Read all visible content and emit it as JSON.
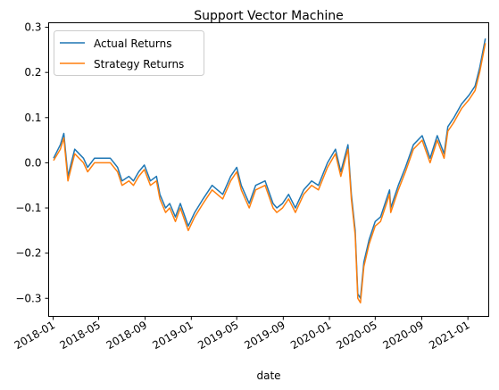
{
  "chart_data": {
    "type": "line",
    "title": "Support Vector Machine",
    "xlabel": "date",
    "ylabel": "",
    "x_axis_type": "date",
    "xlim": [
      "2017-12-20",
      "2021-02-25"
    ],
    "ylim": [
      -0.34,
      0.31
    ],
    "x_tick_labels": [
      "2018-01",
      "2018-05",
      "2018-09",
      "2019-01",
      "2019-05",
      "2019-09",
      "2020-01",
      "2020-05",
      "2020-09",
      "2021-01"
    ],
    "y_tick_labels": [
      "0.3",
      "0.2",
      "0.1",
      "0.0",
      "−0.1",
      "−0.2",
      "−0.3"
    ],
    "y_tick_values": [
      0.3,
      0.2,
      0.1,
      0.0,
      -0.1,
      -0.2,
      -0.3
    ],
    "grid": false,
    "legend_position": "top-left",
    "series": [
      {
        "name": "Actual Returns",
        "color": "#1f77b4",
        "points": [
          [
            "2018-01-02",
            0.01
          ],
          [
            "2018-01-20",
            0.04
          ],
          [
            "2018-01-29",
            0.065
          ],
          [
            "2018-02-09",
            -0.03
          ],
          [
            "2018-02-27",
            0.03
          ],
          [
            "2018-03-22",
            0.01
          ],
          [
            "2018-04-02",
            -0.01
          ],
          [
            "2018-04-20",
            0.01
          ],
          [
            "2018-05-15",
            0.01
          ],
          [
            "2018-06-01",
            0.01
          ],
          [
            "2018-06-20",
            -0.01
          ],
          [
            "2018-07-02",
            -0.04
          ],
          [
            "2018-07-20",
            -0.03
          ],
          [
            "2018-08-01",
            -0.04
          ],
          [
            "2018-08-15",
            -0.02
          ],
          [
            "2018-08-30",
            -0.005
          ],
          [
            "2018-09-15",
            -0.04
          ],
          [
            "2018-10-01",
            -0.03
          ],
          [
            "2018-10-10",
            -0.07
          ],
          [
            "2018-10-25",
            -0.1
          ],
          [
            "2018-11-05",
            -0.09
          ],
          [
            "2018-11-20",
            -0.12
          ],
          [
            "2018-12-03",
            -0.09
          ],
          [
            "2018-12-24",
            -0.14
          ],
          [
            "2019-01-10",
            -0.11
          ],
          [
            "2019-02-01",
            -0.08
          ],
          [
            "2019-02-25",
            -0.05
          ],
          [
            "2019-03-25",
            -0.07
          ],
          [
            "2019-04-15",
            -0.03
          ],
          [
            "2019-05-01",
            -0.01
          ],
          [
            "2019-05-13",
            -0.05
          ],
          [
            "2019-06-03",
            -0.09
          ],
          [
            "2019-06-20",
            -0.05
          ],
          [
            "2019-07-15",
            -0.04
          ],
          [
            "2019-08-05",
            -0.09
          ],
          [
            "2019-08-15",
            -0.1
          ],
          [
            "2019-08-30",
            -0.09
          ],
          [
            "2019-09-15",
            -0.07
          ],
          [
            "2019-10-03",
            -0.1
          ],
          [
            "2019-10-25",
            -0.06
          ],
          [
            "2019-11-15",
            -0.04
          ],
          [
            "2019-12-03",
            -0.05
          ],
          [
            "2019-12-27",
            0.0
          ],
          [
            "2020-01-17",
            0.03
          ],
          [
            "2020-01-31",
            -0.02
          ],
          [
            "2020-02-19",
            0.04
          ],
          [
            "2020-02-28",
            -0.07
          ],
          [
            "2020-03-09",
            -0.15
          ],
          [
            "2020-03-16",
            -0.29
          ],
          [
            "2020-03-23",
            -0.3
          ],
          [
            "2020-04-01",
            -0.22
          ],
          [
            "2020-04-15",
            -0.17
          ],
          [
            "2020-05-01",
            -0.13
          ],
          [
            "2020-05-15",
            -0.12
          ],
          [
            "2020-06-08",
            -0.06
          ],
          [
            "2020-06-11",
            -0.1
          ],
          [
            "2020-07-01",
            -0.05
          ],
          [
            "2020-07-20",
            -0.01
          ],
          [
            "2020-08-10",
            0.04
          ],
          [
            "2020-09-02",
            0.06
          ],
          [
            "2020-09-23",
            0.01
          ],
          [
            "2020-10-12",
            0.06
          ],
          [
            "2020-10-30",
            0.02
          ],
          [
            "2020-11-09",
            0.08
          ],
          [
            "2020-11-25",
            0.1
          ],
          [
            "2020-12-15",
            0.13
          ],
          [
            "2021-01-04",
            0.15
          ],
          [
            "2021-01-20",
            0.17
          ],
          [
            "2021-02-01",
            0.21
          ],
          [
            "2021-02-08",
            0.24
          ],
          [
            "2021-02-16",
            0.275
          ]
        ]
      },
      {
        "name": "Strategy Returns",
        "color": "#ff7f0e",
        "points": [
          [
            "2018-01-02",
            0.005
          ],
          [
            "2018-01-20",
            0.03
          ],
          [
            "2018-01-29",
            0.055
          ],
          [
            "2018-02-09",
            -0.04
          ],
          [
            "2018-02-27",
            0.02
          ],
          [
            "2018-03-22",
            0.0
          ],
          [
            "2018-04-02",
            -0.02
          ],
          [
            "2018-04-20",
            0.0
          ],
          [
            "2018-05-15",
            0.0
          ],
          [
            "2018-06-01",
            0.0
          ],
          [
            "2018-06-20",
            -0.02
          ],
          [
            "2018-07-02",
            -0.05
          ],
          [
            "2018-07-20",
            -0.04
          ],
          [
            "2018-08-01",
            -0.05
          ],
          [
            "2018-08-15",
            -0.03
          ],
          [
            "2018-08-30",
            -0.015
          ],
          [
            "2018-09-15",
            -0.05
          ],
          [
            "2018-10-01",
            -0.04
          ],
          [
            "2018-10-10",
            -0.08
          ],
          [
            "2018-10-25",
            -0.11
          ],
          [
            "2018-11-05",
            -0.1
          ],
          [
            "2018-11-20",
            -0.13
          ],
          [
            "2018-12-03",
            -0.1
          ],
          [
            "2018-12-24",
            -0.15
          ],
          [
            "2019-01-10",
            -0.12
          ],
          [
            "2019-02-01",
            -0.09
          ],
          [
            "2019-02-25",
            -0.06
          ],
          [
            "2019-03-25",
            -0.08
          ],
          [
            "2019-04-15",
            -0.04
          ],
          [
            "2019-05-01",
            -0.02
          ],
          [
            "2019-05-13",
            -0.06
          ],
          [
            "2019-06-03",
            -0.1
          ],
          [
            "2019-06-20",
            -0.06
          ],
          [
            "2019-07-15",
            -0.05
          ],
          [
            "2019-08-05",
            -0.1
          ],
          [
            "2019-08-15",
            -0.11
          ],
          [
            "2019-08-30",
            -0.1
          ],
          [
            "2019-09-15",
            -0.08
          ],
          [
            "2019-10-03",
            -0.11
          ],
          [
            "2019-10-25",
            -0.07
          ],
          [
            "2019-11-15",
            -0.05
          ],
          [
            "2019-12-03",
            -0.06
          ],
          [
            "2019-12-27",
            -0.01
          ],
          [
            "2020-01-17",
            0.02
          ],
          [
            "2020-01-31",
            -0.03
          ],
          [
            "2020-02-19",
            0.03
          ],
          [
            "2020-02-28",
            -0.08
          ],
          [
            "2020-03-09",
            -0.16
          ],
          [
            "2020-03-16",
            -0.3
          ],
          [
            "2020-03-23",
            -0.31
          ],
          [
            "2020-04-01",
            -0.23
          ],
          [
            "2020-04-15",
            -0.18
          ],
          [
            "2020-05-01",
            -0.14
          ],
          [
            "2020-05-15",
            -0.13
          ],
          [
            "2020-06-08",
            -0.07
          ],
          [
            "2020-06-11",
            -0.11
          ],
          [
            "2020-07-01",
            -0.06
          ],
          [
            "2020-07-20",
            -0.02
          ],
          [
            "2020-08-10",
            0.03
          ],
          [
            "2020-09-02",
            0.05
          ],
          [
            "2020-09-23",
            0.0
          ],
          [
            "2020-10-12",
            0.05
          ],
          [
            "2020-10-30",
            0.01
          ],
          [
            "2020-11-09",
            0.07
          ],
          [
            "2020-11-25",
            0.09
          ],
          [
            "2020-12-15",
            0.12
          ],
          [
            "2021-01-04",
            0.14
          ],
          [
            "2021-01-20",
            0.16
          ],
          [
            "2021-02-01",
            0.2
          ],
          [
            "2021-02-08",
            0.23
          ],
          [
            "2021-02-16",
            0.265
          ]
        ]
      }
    ]
  }
}
